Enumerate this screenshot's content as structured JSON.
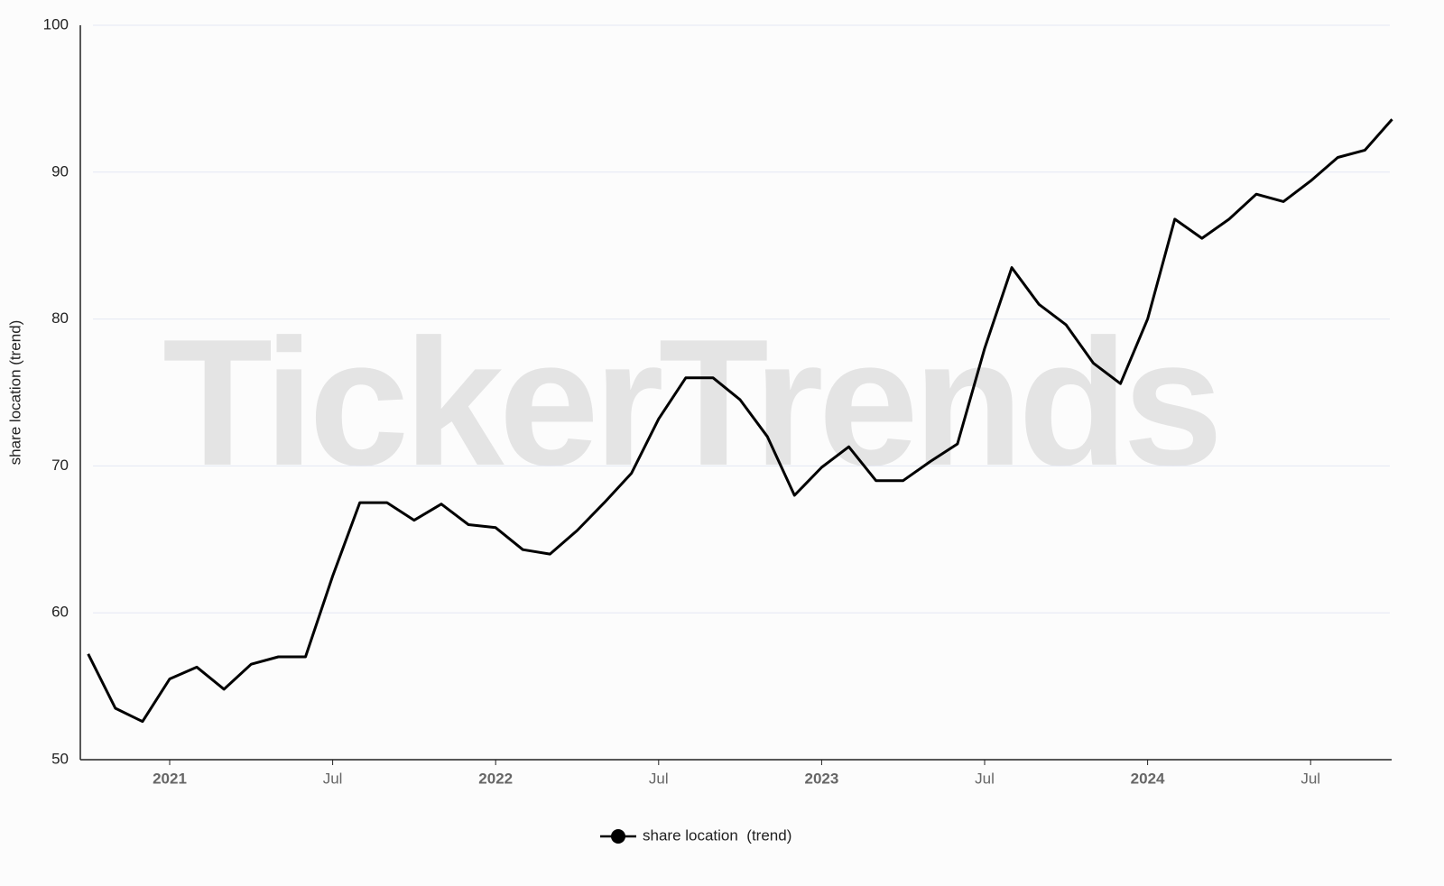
{
  "chart_data": {
    "type": "line",
    "watermark": "TickerTrends",
    "y_label": "share location  (trend)",
    "x": [
      "2020-10",
      "2020-11",
      "2020-12",
      "2021-01",
      "2021-02",
      "2021-03",
      "2021-04",
      "2021-05",
      "2021-06",
      "2021-07",
      "2021-08",
      "2021-09",
      "2021-10",
      "2021-11",
      "2021-12",
      "2022-01",
      "2022-02",
      "2022-03",
      "2022-04",
      "2022-05",
      "2022-06",
      "2022-07",
      "2022-08",
      "2022-09",
      "2022-10",
      "2022-11",
      "2022-12",
      "2023-01",
      "2023-02",
      "2023-03",
      "2023-04",
      "2023-05",
      "2023-06",
      "2023-07",
      "2023-08",
      "2023-09",
      "2023-10",
      "2023-11",
      "2023-12",
      "2024-01",
      "2024-02",
      "2024-03",
      "2024-04",
      "2024-05",
      "2024-06",
      "2024-07",
      "2024-08",
      "2024-09",
      "2024-10"
    ],
    "series": [
      {
        "name": "share location  (trend)",
        "color": "#000000",
        "values": [
          57.2,
          53.5,
          52.6,
          55.5,
          56.3,
          54.8,
          56.5,
          57.0,
          57.0,
          62.5,
          67.5,
          67.5,
          66.3,
          67.4,
          66.0,
          65.8,
          64.3,
          64.0,
          65.6,
          67.5,
          69.5,
          73.2,
          76.0,
          76.0,
          74.5,
          72.0,
          68.0,
          69.9,
          71.3,
          69.0,
          69.0,
          70.3,
          71.5,
          78.0,
          83.5,
          81.0,
          79.6,
          77.0,
          75.6,
          80.0,
          86.8,
          85.5,
          86.8,
          88.5,
          88.0,
          89.4,
          91.0,
          91.5,
          93.6
        ]
      }
    ],
    "xlim": [
      "2020-10",
      "2024-10"
    ],
    "xticks": [
      {
        "value": "2021-01",
        "label": "2021"
      },
      {
        "value": "2021-07",
        "label": "Jul"
      },
      {
        "value": "2022-01",
        "label": "2022"
      },
      {
        "value": "2022-07",
        "label": "Jul"
      },
      {
        "value": "2023-01",
        "label": "2023"
      },
      {
        "value": "2023-07",
        "label": "Jul"
      },
      {
        "value": "2024-01",
        "label": "2024"
      },
      {
        "value": "2024-07",
        "label": "Jul"
      }
    ],
    "ylim": [
      50,
      100
    ],
    "yticks": [
      50,
      60,
      70,
      80,
      90,
      100
    ],
    "grid": true,
    "legend": "bottom"
  }
}
